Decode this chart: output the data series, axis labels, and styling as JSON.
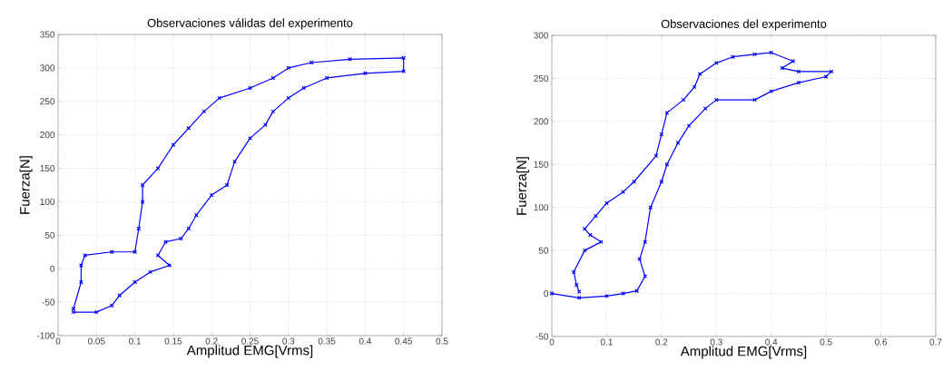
{
  "chart_data": [
    {
      "type": "line",
      "title": "Observaciones válidas del experimento",
      "xlabel": "Amplitud EMG[Vrms]",
      "ylabel": "Fuerza[N]",
      "xlim": [
        0,
        0.5
      ],
      "ylim": [
        -100,
        350
      ],
      "xticks": [
        0,
        0.05,
        0.1,
        0.15,
        0.2,
        0.25,
        0.3,
        0.35,
        0.4,
        0.45,
        0.5
      ],
      "yticks": [
        -100,
        -50,
        0,
        50,
        100,
        150,
        200,
        250,
        300,
        350
      ],
      "grid": true,
      "marker": "cross",
      "line_style": "solid",
      "series": [
        {
          "color": "#0000ff",
          "x": [
            0.02,
            0.03,
            0.03,
            0.035,
            0.07,
            0.1,
            0.105,
            0.11,
            0.11,
            0.13,
            0.15,
            0.17,
            0.19,
            0.21,
            0.25,
            0.28,
            0.3,
            0.33,
            0.38,
            0.45,
            0.45,
            0.4,
            0.35,
            0.32,
            0.3,
            0.28,
            0.27,
            0.25,
            0.23,
            0.22,
            0.2,
            0.18,
            0.17,
            0.16,
            0.14,
            0.13,
            0.145,
            0.12,
            0.1,
            0.08,
            0.07,
            0.05,
            0.02
          ],
          "values": [
            -60,
            -20,
            5,
            20,
            25,
            25,
            60,
            100,
            125,
            150,
            185,
            210,
            235,
            255,
            270,
            285,
            300,
            308,
            313,
            315,
            295,
            292,
            285,
            270,
            255,
            235,
            215,
            195,
            160,
            125,
            110,
            80,
            60,
            45,
            40,
            20,
            5,
            -5,
            -20,
            -40,
            -55,
            -65,
            -65
          ]
        }
      ]
    },
    {
      "type": "line",
      "title": "Observaciones del experimento",
      "xlabel": "Amplitud EMG[Vrms]",
      "ylabel": "Fuerza[N]",
      "xlim": [
        0,
        0.7
      ],
      "ylim": [
        -50,
        300
      ],
      "xticks": [
        0,
        0.1,
        0.2,
        0.3,
        0.4,
        0.5,
        0.6,
        0.7
      ],
      "yticks": [
        -50,
        0,
        50,
        100,
        150,
        200,
        250,
        300
      ],
      "grid": true,
      "marker": "cross",
      "line_style": "solid",
      "series": [
        {
          "color": "#0000ff",
          "x": [
            0,
            0.05,
            0.1,
            0.13,
            0.155,
            0.17,
            0.16,
            0.17,
            0.18,
            0.2,
            0.21,
            0.23,
            0.25,
            0.28,
            0.3,
            0.37,
            0.4,
            0.45,
            0.5,
            0.51,
            0.45,
            0.42,
            0.44,
            0.4,
            0.37,
            0.33,
            0.3,
            0.27,
            0.26,
            0.24,
            0.21,
            0.2,
            0.19,
            0.15,
            0.13,
            0.1,
            0.08,
            0.06,
            0.07,
            0.09,
            0.06,
            0.04,
            0.045,
            0.05
          ],
          "values": [
            0,
            -5,
            -3,
            0,
            3,
            20,
            40,
            60,
            100,
            130,
            150,
            175,
            195,
            215,
            225,
            225,
            235,
            245,
            252,
            258,
            258,
            262,
            270,
            280,
            278,
            275,
            268,
            255,
            240,
            225,
            210,
            185,
            160,
            130,
            118,
            105,
            90,
            75,
            68,
            60,
            50,
            25,
            10,
            2
          ]
        }
      ]
    }
  ]
}
